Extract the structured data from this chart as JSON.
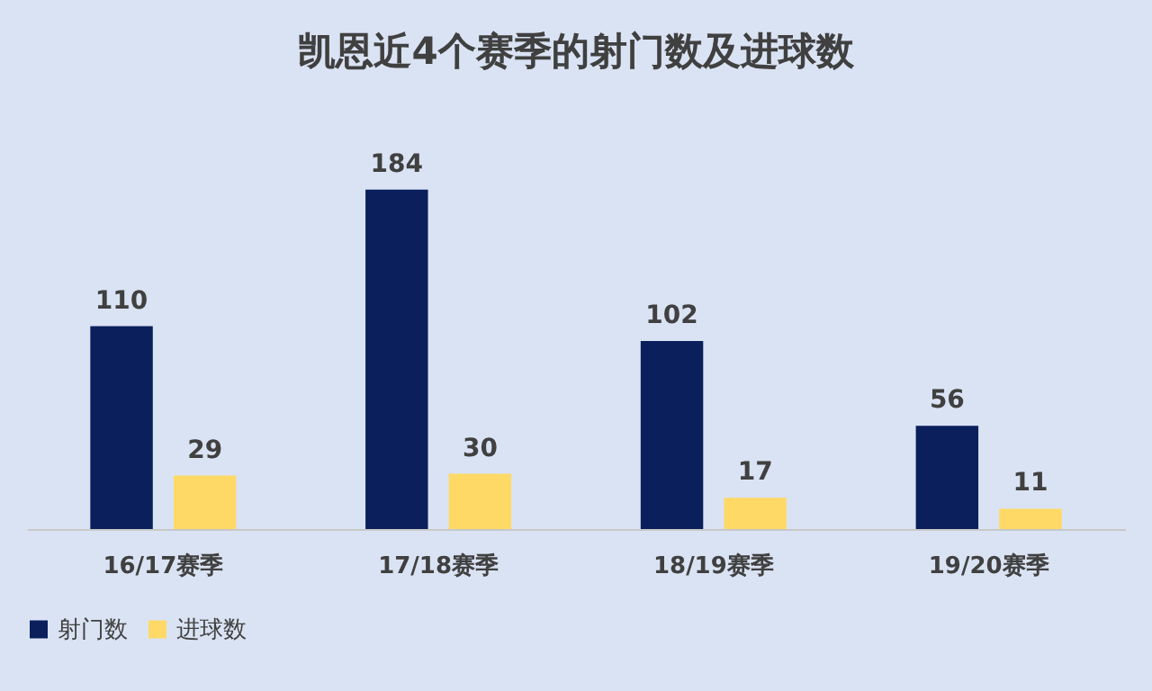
{
  "chart_data": {
    "type": "bar",
    "title": "凯恩近4个赛季的射门数及进球数",
    "categories": [
      "16/17赛季",
      "17/18赛季",
      "18/19赛季",
      "19/20赛季"
    ],
    "series": [
      {
        "name": "射门数",
        "color": "#0b1f5c",
        "values": [
          110,
          184,
          102,
          56
        ]
      },
      {
        "name": "进球数",
        "color": "#ffd966",
        "values": [
          29,
          30,
          17,
          11
        ]
      }
    ],
    "data_labels": true,
    "legend": "bottom",
    "grid": false
  }
}
